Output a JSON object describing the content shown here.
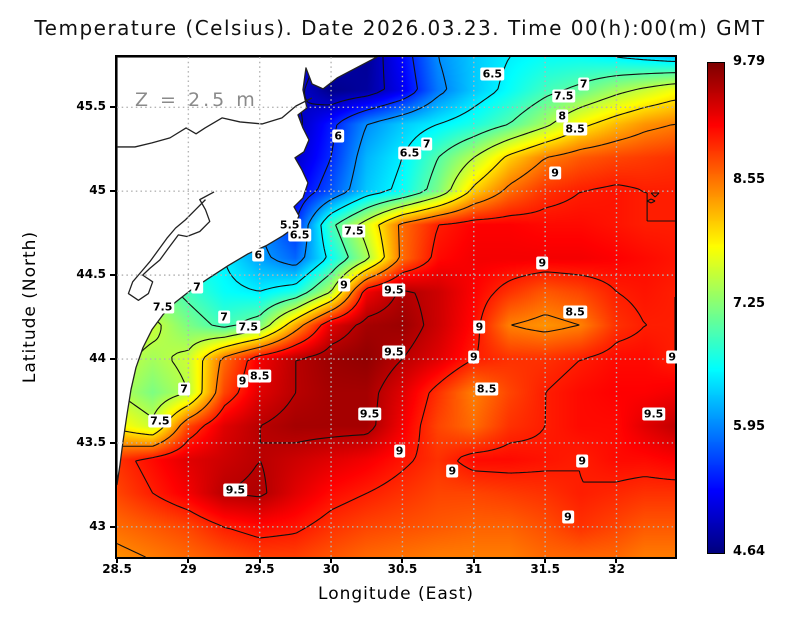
{
  "title": "Temperature (Celsius). Date 2026.03.23. Time 00(h):00(m) GMT",
  "annotation": {
    "text": "Z = 2.5 m",
    "color": "#8a8a8a"
  },
  "axes": {
    "x": {
      "label": "Longitude (East)",
      "tick_values": [
        28.5,
        29,
        29.5,
        30,
        30.5,
        31,
        31.5,
        32
      ],
      "tick_labels": [
        "28.5",
        "29",
        "29.5",
        "30",
        "30.5",
        "31",
        "31.5",
        "32"
      ]
    },
    "y": {
      "label": "Latitude (North)",
      "tick_values": [
        45.5,
        45,
        44.5,
        44,
        43.5,
        43
      ],
      "tick_labels": [
        "45.5",
        "45",
        "44.5",
        "44",
        "43.5",
        "43"
      ]
    }
  },
  "colorbar": {
    "min": 4.64,
    "max": 9.79,
    "colormap": "jet",
    "tick_values": [
      9.79,
      8.55,
      7.25,
      5.95,
      4.64
    ],
    "tick_labels": [
      "9.79",
      "8.55",
      "7.25",
      "5.95",
      "4.64"
    ]
  },
  "chart_data": {
    "type": "heatmap",
    "title": "Temperature (Celsius). Date 2026.03.23. Time 00(h):00(m) GMT",
    "units": "Celsius",
    "xlabel": "Longitude (East)",
    "ylabel": "Latitude (North)",
    "lon_range": [
      28.5,
      32.41
    ],
    "lat_range": [
      42.82,
      45.8
    ],
    "value_range": [
      4.64,
      9.79
    ],
    "grid_on": true,
    "grid_lons": [
      29,
      29.5,
      30,
      30.5,
      31,
      31.5,
      32
    ],
    "grid_lats": [
      43,
      43.5,
      44,
      44.5,
      45,
      45.5
    ],
    "lons": [
      28.5,
      28.75,
      29.0,
      29.25,
      29.5,
      29.75,
      30.0,
      30.25,
      30.5,
      30.75,
      31.0,
      31.25,
      31.5,
      31.75,
      32.0,
      32.2,
      32.4
    ],
    "lats": [
      45.8,
      45.6,
      45.4,
      45.2,
      45.0,
      44.8,
      44.6,
      44.4,
      44.2,
      44.0,
      43.8,
      43.6,
      43.4,
      43.2,
      43.0,
      42.8
    ],
    "temperature": [
      [
        6.5,
        6.5,
        6.3,
        6.0,
        5.6,
        5.2,
        4.9,
        4.75,
        5.3,
        6.0,
        6.3,
        6.5,
        6.6,
        6.6,
        6.5,
        6.4,
        6.3
      ],
      [
        6.5,
        6.5,
        6.3,
        6.0,
        5.6,
        5.1,
        4.7,
        4.8,
        5.2,
        5.9,
        6.3,
        6.6,
        6.9,
        7.1,
        7.4,
        7.6,
        7.8
      ],
      [
        6.5,
        6.5,
        6.3,
        6.1,
        5.7,
        4.9,
        5.4,
        6.0,
        6.3,
        6.5,
        6.7,
        7.0,
        7.4,
        7.9,
        8.2,
        8.4,
        8.5
      ],
      [
        6.5,
        6.5,
        6.4,
        6.2,
        5.8,
        5.0,
        5.5,
        6.2,
        6.5,
        7.0,
        7.5,
        8.1,
        8.5,
        8.7,
        8.8,
        8.85,
        8.9
      ],
      [
        6.5,
        6.5,
        6.4,
        6.2,
        5.9,
        5.2,
        5.7,
        6.3,
        6.6,
        7.2,
        8.1,
        8.6,
        8.9,
        9.0,
        9.05,
        9.0,
        9.0
      ],
      [
        6.6,
        6.6,
        6.5,
        6.3,
        6.0,
        5.5,
        6.9,
        7.7,
        8.6,
        9.0,
        9.15,
        9.15,
        9.1,
        9.1,
        9.05,
        9.0,
        9.0
      ],
      [
        6.7,
        6.7,
        6.6,
        6.5,
        6.1,
        5.8,
        6.6,
        7.4,
        8.6,
        9.1,
        9.2,
        9.2,
        9.2,
        9.2,
        9.15,
        9.1,
        9.05
      ],
      [
        7.5,
        7.2,
        6.9,
        6.6,
        6.5,
        6.7,
        7.5,
        9.2,
        9.55,
        9.4,
        9.15,
        8.9,
        8.7,
        8.8,
        9.0,
        9.05,
        9.0
      ],
      [
        7.7,
        7.6,
        7.2,
        6.9,
        7.2,
        8.3,
        9.3,
        9.6,
        9.65,
        9.4,
        9.1,
        8.5,
        8.4,
        8.5,
        8.9,
        9.0,
        9.0
      ],
      [
        7.6,
        7.4,
        7.6,
        8.6,
        9.2,
        9.5,
        9.65,
        9.7,
        9.5,
        9.3,
        9.0,
        8.9,
        8.9,
        9.0,
        9.1,
        9.1,
        9.0
      ],
      [
        7.5,
        7.2,
        7.5,
        8.8,
        9.3,
        9.5,
        9.6,
        9.6,
        9.3,
        8.9,
        8.5,
        8.8,
        9.0,
        9.1,
        9.15,
        9.15,
        9.2
      ],
      [
        7.9,
        7.6,
        8.8,
        9.3,
        9.5,
        9.6,
        9.6,
        9.6,
        9.2,
        8.8,
        8.6,
        8.9,
        9.0,
        9.1,
        9.1,
        9.3,
        9.45
      ],
      [
        8.9,
        9.1,
        9.3,
        9.4,
        9.5,
        9.4,
        9.3,
        9.2,
        9.05,
        8.9,
        9.1,
        9.1,
        9.05,
        9.0,
        9.1,
        9.1,
        9.15
      ],
      [
        8.8,
        9.0,
        9.2,
        9.5,
        9.55,
        9.3,
        9.1,
        9.0,
        8.9,
        8.8,
        8.8,
        8.85,
        8.9,
        9.0,
        8.95,
        8.9,
        8.9
      ],
      [
        8.6,
        8.7,
        8.8,
        9.0,
        9.1,
        9.05,
        8.9,
        8.8,
        8.75,
        8.7,
        8.65,
        8.65,
        8.75,
        8.9,
        8.8,
        8.7,
        8.7
      ],
      [
        8.4,
        8.5,
        8.6,
        8.7,
        8.8,
        8.8,
        8.7,
        8.6,
        8.55,
        8.5,
        8.5,
        8.5,
        8.6,
        8.6,
        8.6,
        8.5,
        8.5
      ]
    ],
    "contour_levels": [
      5,
      5.5,
      6,
      6.5,
      7,
      7.5,
      8,
      8.5,
      9,
      9.5
    ],
    "contour_labels": [
      {
        "t": "6.5",
        "lon": 31.13,
        "lat": 45.7
      },
      {
        "t": "7",
        "lon": 31.77,
        "lat": 45.64
      },
      {
        "t": "7.5",
        "lon": 31.63,
        "lat": 45.57
      },
      {
        "t": "8",
        "lon": 31.62,
        "lat": 45.45
      },
      {
        "t": "8.5",
        "lon": 31.71,
        "lat": 45.37
      },
      {
        "t": "9",
        "lon": 31.57,
        "lat": 45.11
      },
      {
        "t": "6",
        "lon": 30.05,
        "lat": 45.33
      },
      {
        "t": "6.5",
        "lon": 30.55,
        "lat": 45.23
      },
      {
        "t": "7",
        "lon": 30.67,
        "lat": 45.28
      },
      {
        "t": "5.5",
        "lon": 29.71,
        "lat": 44.8
      },
      {
        "t": "6.5",
        "lon": 29.78,
        "lat": 44.74
      },
      {
        "t": "7.5",
        "lon": 30.16,
        "lat": 44.76
      },
      {
        "t": "6",
        "lon": 29.49,
        "lat": 44.62
      },
      {
        "t": "7.5",
        "lon": 28.82,
        "lat": 44.31
      },
      {
        "t": "7",
        "lon": 29.06,
        "lat": 44.43
      },
      {
        "t": "7",
        "lon": 29.25,
        "lat": 44.25
      },
      {
        "t": "7.5",
        "lon": 29.42,
        "lat": 44.19
      },
      {
        "t": "9",
        "lon": 30.09,
        "lat": 44.44
      },
      {
        "t": "9.5",
        "lon": 30.44,
        "lat": 44.41
      },
      {
        "t": "9.5",
        "lon": 30.44,
        "lat": 44.04
      },
      {
        "t": "9",
        "lon": 31.48,
        "lat": 44.57
      },
      {
        "t": "9",
        "lon": 31.04,
        "lat": 44.19
      },
      {
        "t": "8.5",
        "lon": 31.71,
        "lat": 44.28
      },
      {
        "t": "9",
        "lon": 31.0,
        "lat": 44.01
      },
      {
        "t": "9",
        "lon": 32.39,
        "lat": 44.01
      },
      {
        "t": "7",
        "lon": 28.97,
        "lat": 43.82
      },
      {
        "t": "8.5",
        "lon": 29.5,
        "lat": 43.9
      },
      {
        "t": "9",
        "lon": 29.38,
        "lat": 43.87
      },
      {
        "t": "7.5",
        "lon": 28.8,
        "lat": 43.63
      },
      {
        "t": "8.5",
        "lon": 31.09,
        "lat": 43.82
      },
      {
        "t": "9.5",
        "lon": 32.26,
        "lat": 43.67
      },
      {
        "t": "9.5",
        "lon": 30.27,
        "lat": 43.67
      },
      {
        "t": "9.5",
        "lon": 29.33,
        "lat": 43.22
      },
      {
        "t": "9",
        "lon": 30.48,
        "lat": 43.45
      },
      {
        "t": "9",
        "lon": 30.85,
        "lat": 43.33
      },
      {
        "t": "9",
        "lon": 31.76,
        "lat": 43.39
      },
      {
        "t": "9",
        "lon": 31.66,
        "lat": 43.06
      }
    ],
    "coastline": [
      [
        30.322,
        45.8
      ],
      [
        30.042,
        45.675
      ],
      [
        29.944,
        45.61
      ],
      [
        29.867,
        45.639
      ],
      [
        29.824,
        45.735
      ],
      [
        29.803,
        45.604
      ],
      [
        29.831,
        45.496
      ],
      [
        29.768,
        45.455
      ],
      [
        29.803,
        45.377
      ],
      [
        29.845,
        45.306
      ],
      [
        29.81,
        45.235
      ],
      [
        29.747,
        45.199
      ],
      [
        29.796,
        45.127
      ],
      [
        29.838,
        45.05
      ],
      [
        29.803,
        44.96
      ],
      [
        29.74,
        44.907
      ],
      [
        29.775,
        44.854
      ],
      [
        29.74,
        44.782
      ],
      [
        29.663,
        44.735
      ],
      [
        29.544,
        44.675
      ],
      [
        29.418,
        44.627
      ],
      [
        29.278,
        44.556
      ],
      [
        29.138,
        44.479
      ],
      [
        29.012,
        44.407
      ],
      [
        28.906,
        44.336
      ],
      [
        28.822,
        44.264
      ],
      [
        28.745,
        44.175
      ],
      [
        28.682,
        44.068
      ],
      [
        28.633,
        43.949
      ],
      [
        28.598,
        43.818
      ],
      [
        28.57,
        43.669
      ],
      [
        28.542,
        43.508
      ],
      [
        28.521,
        43.371
      ],
      [
        28.5,
        43.252
      ]
    ],
    "inland_water_lines": [
      [
        [
          29.866,
          45.556
        ],
        [
          29.754,
          45.508
        ],
        [
          29.656,
          45.437
        ],
        [
          29.516,
          45.401
        ],
        [
          29.362,
          45.413
        ],
        [
          29.236,
          45.437
        ],
        [
          29.117,
          45.377
        ],
        [
          29.054,
          45.342
        ],
        [
          28.984,
          45.377
        ],
        [
          28.871,
          45.318
        ],
        [
          28.745,
          45.288
        ],
        [
          28.626,
          45.264
        ],
        [
          28.5,
          45.264
        ]
      ],
      [
        [
          29.18,
          44.996
        ],
        [
          29.08,
          44.95
        ],
        [
          29.12,
          44.89
        ],
        [
          29.15,
          44.82
        ],
        [
          29.08,
          44.76
        ],
        [
          28.99,
          44.73
        ],
        [
          28.93,
          44.74
        ],
        [
          28.86,
          44.66
        ],
        [
          28.8,
          44.59
        ],
        [
          28.73,
          44.54
        ],
        [
          28.68,
          44.5
        ],
        [
          28.75,
          44.46
        ],
        [
          28.72,
          44.39
        ],
        [
          28.65,
          44.35
        ],
        [
          28.58,
          44.39
        ],
        [
          28.61,
          44.46
        ],
        [
          28.67,
          44.52
        ],
        [
          28.73,
          44.58
        ],
        [
          28.79,
          44.65
        ],
        [
          28.85,
          44.72
        ],
        [
          28.91,
          44.78
        ],
        [
          28.98,
          44.83
        ],
        [
          29.05,
          44.89
        ],
        [
          29.12,
          44.95
        ]
      ]
    ],
    "land_color": "#ffffff",
    "coast_color": "#222222",
    "contour_color": "#101010",
    "gridline_color": "#b4b4b4"
  }
}
